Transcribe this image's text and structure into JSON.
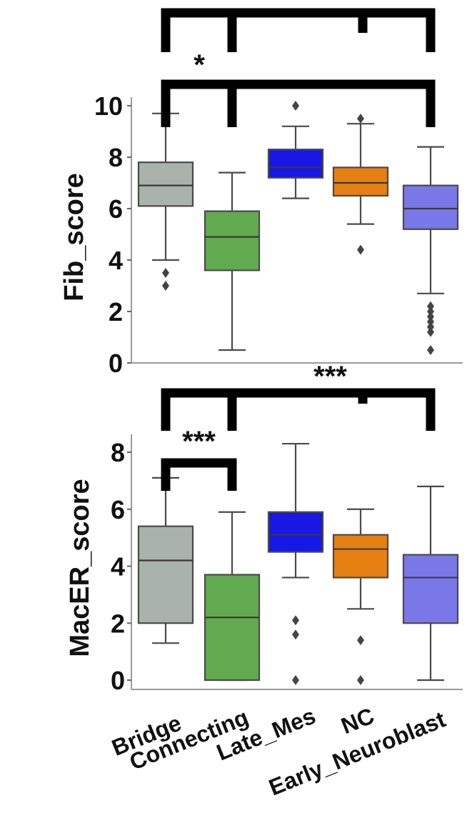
{
  "chart_data": [
    {
      "type": "box",
      "ylabel": "Fib_score",
      "ylim": [
        0,
        10
      ],
      "yticks": [
        0,
        2,
        4,
        6,
        8,
        10
      ],
      "series": [
        {
          "category": "Bridge",
          "color": "#a9b2ab",
          "q1": 6.1,
          "median": 6.9,
          "q3": 7.8,
          "whislo": 4.0,
          "whishi": 9.7,
          "fliers": [
            3.5,
            3.0
          ]
        },
        {
          "category": "Connecting",
          "color": "#62aa50",
          "q1": 3.6,
          "median": 4.9,
          "q3": 5.9,
          "whislo": 0.5,
          "whishi": 7.4,
          "fliers": []
        },
        {
          "category": "Late_Mes",
          "color": "#1717e6",
          "q1": 7.2,
          "median": 7.6,
          "q3": 8.3,
          "whislo": 6.4,
          "whishi": 9.2,
          "fliers": [
            10.0
          ]
        },
        {
          "category": "NC",
          "color": "#e68012",
          "q1": 6.5,
          "median": 7.0,
          "q3": 7.6,
          "whislo": 5.4,
          "whishi": 9.3,
          "fliers": [
            9.5,
            4.4
          ]
        },
        {
          "category": "Early_Neuroblast",
          "color": "#7a78e8",
          "q1": 5.2,
          "median": 6.0,
          "q3": 6.9,
          "whislo": 2.7,
          "whishi": 8.4,
          "fliers": [
            2.2,
            2.0,
            1.8,
            1.6,
            1.4,
            1.2,
            0.5
          ]
        }
      ],
      "significance": [
        {
          "label": "",
          "from": "Bridge",
          "to": "Early_Neuroblast",
          "y": 13.2
        },
        {
          "label": "*",
          "from": "Bridge",
          "to": "Early_Neuroblast",
          "y": 10.8
        }
      ]
    },
    {
      "type": "box",
      "ylabel": "MacER_score",
      "ylim": [
        -0.3,
        8.6
      ],
      "yticks": [
        0,
        2,
        4,
        6,
        8
      ],
      "xlabels": [
        "Bridge",
        "Connecting",
        "Late_Mes",
        "NC",
        "Early_Neuroblast"
      ],
      "series": [
        {
          "category": "Bridge",
          "color": "#a9b2ab",
          "q1": 2.0,
          "median": 4.2,
          "q3": 5.4,
          "whislo": 1.3,
          "whishi": 7.1,
          "fliers": []
        },
        {
          "category": "Connecting",
          "color": "#62aa50",
          "q1": 0.0,
          "median": 2.2,
          "q3": 3.7,
          "whislo": 0.0,
          "whishi": 5.9,
          "fliers": []
        },
        {
          "category": "Late_Mes",
          "color": "#1717e6",
          "q1": 4.5,
          "median": 5.1,
          "q3": 5.9,
          "whislo": 3.6,
          "whishi": 8.3,
          "fliers": [
            2.1,
            1.6,
            0.0
          ]
        },
        {
          "category": "NC",
          "color": "#e68012",
          "q1": 3.6,
          "median": 4.6,
          "q3": 5.1,
          "whislo": 2.5,
          "whishi": 6.0,
          "fliers": [
            1.4,
            0.0
          ]
        },
        {
          "category": "Early_Neuroblast",
          "color": "#7a78e8",
          "q1": 2.0,
          "median": 3.6,
          "q3": 4.4,
          "whislo": 0.0,
          "whishi": 6.8,
          "fliers": []
        }
      ],
      "significance": [
        {
          "label": "***",
          "from": "Bridge",
          "to": "Early_Neuroblast",
          "y": 10.6
        },
        {
          "label": "***",
          "from": "Bridge",
          "to": "Connecting",
          "y": 8.1
        }
      ]
    }
  ]
}
